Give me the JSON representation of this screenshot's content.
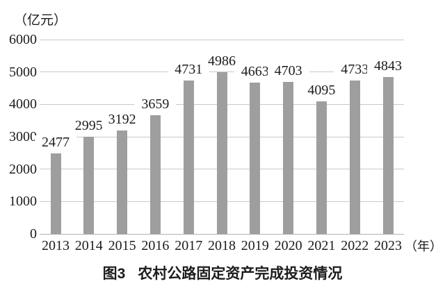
{
  "axes": {
    "y_unit": "（亿元）",
    "x_unit": "（年）"
  },
  "caption": {
    "prefix": "图3",
    "title": "农村公路固定资产完成投资情况"
  },
  "colors": {
    "bar": "#9e9e9e",
    "grid": "#c8c8c8",
    "baseline": "#b0b0b0",
    "text": "#1c1c1c"
  },
  "chart_data": {
    "type": "bar",
    "title": "图3 农村公路固定资产完成投资情况",
    "ylabel": "亿元",
    "xlabel": "年",
    "categories": [
      "2013",
      "2014",
      "2015",
      "2016",
      "2017",
      "2018",
      "2019",
      "2020",
      "2021",
      "2022",
      "2023"
    ],
    "values": [
      2477,
      2995,
      3192,
      3659,
      4731,
      4986,
      4663,
      4703,
      4095,
      4733,
      4843
    ],
    "ylim": [
      0,
      6000
    ],
    "ytick_step": 1000,
    "yticks": [
      0,
      1000,
      2000,
      3000,
      4000,
      5000,
      6000
    ],
    "grid": true,
    "legend": null,
    "data_labels": true
  }
}
